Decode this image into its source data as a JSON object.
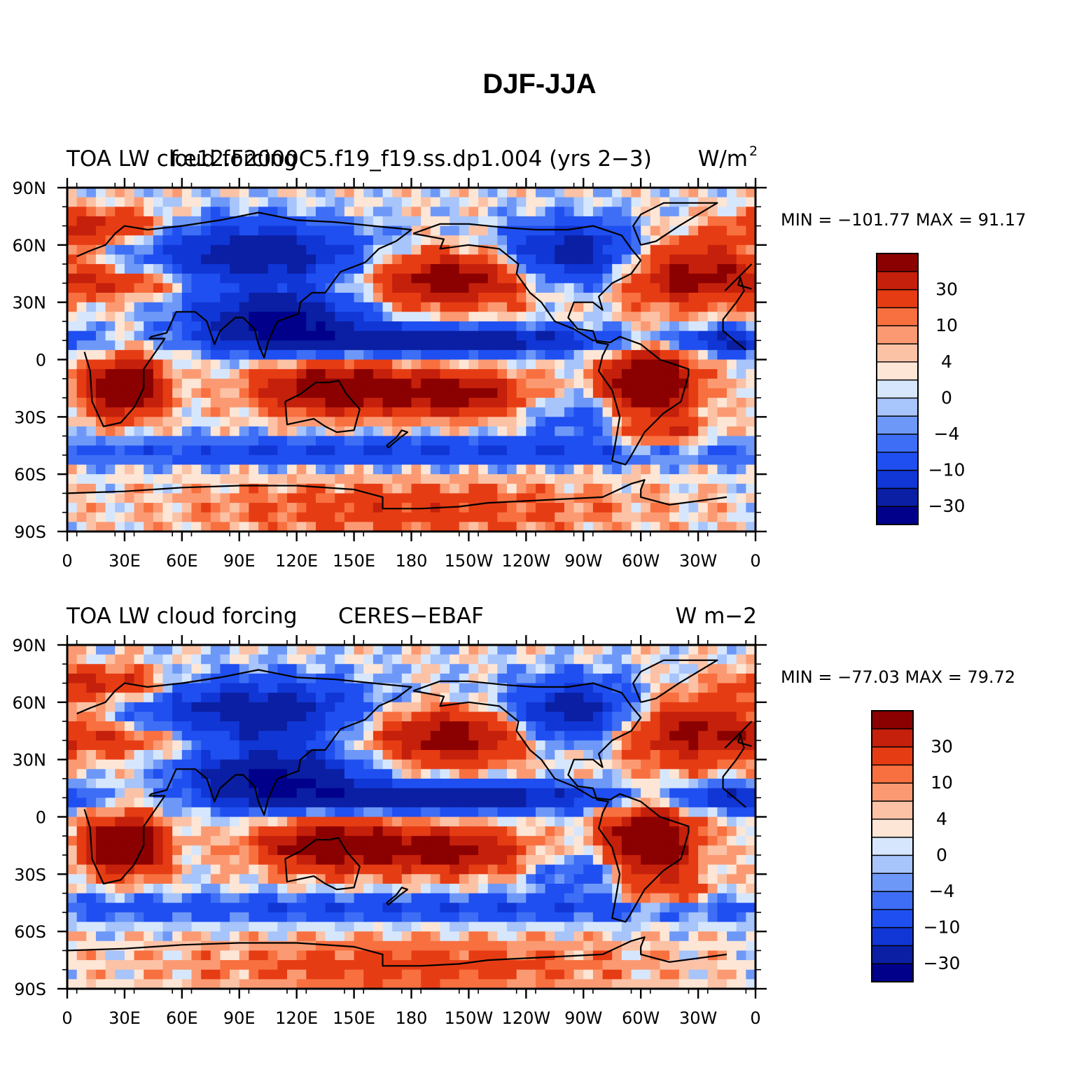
{
  "figure": {
    "title": "DJF-JJA",
    "x_ticks": [
      "0",
      "30E",
      "60E",
      "90E",
      "120E",
      "150E",
      "180",
      "150W",
      "120W",
      "90W",
      "60W",
      "30W",
      "0"
    ],
    "y_ticks": [
      "90N",
      "60N",
      "30N",
      "0",
      "30S",
      "60S",
      "90S"
    ],
    "colorbar_labels": [
      "30",
      "10",
      "4",
      "0",
      "−4",
      "−10",
      "−30"
    ],
    "palette": [
      "#00008b",
      "#0a1fa3",
      "#1136d6",
      "#1f4ff0",
      "#3d6ef5",
      "#6e98f8",
      "#a7c4fb",
      "#d6e7fd",
      "#fde6d6",
      "#fcc2a6",
      "#fb9a72",
      "#f8703f",
      "#e63c14",
      "#c4200b",
      "#8b0000"
    ]
  },
  "panels": [
    {
      "left_title": "TOA LW cloud forcing",
      "center_title": "f.e12.F2000C5.f19_f19.ss.dp1.004 (yrs 2−3)",
      "right_title": "W/m",
      "right_title_sup": "2",
      "min_max": "MIN = −101.77 MAX =  91.17"
    },
    {
      "left_title": "TOA LW cloud forcing",
      "center_title": "CERES−EBAF",
      "right_title": "W m−2",
      "right_title_sup": "",
      "min_max": "MIN = −77.03 MAX =  79.72"
    }
  ],
  "chart_data": [
    {
      "type": "heatmap",
      "title": "f.e12.F2000C5.f19_f19.ss.dp1.004 (yrs 2−3)",
      "variable": "TOA LW cloud forcing",
      "units": "W/m2",
      "x_range": [
        0,
        360
      ],
      "y_range": [
        -90,
        90
      ],
      "min": -101.77,
      "max": 91.17,
      "color_levels": [
        "−30",
        "−10",
        "−4",
        "0",
        "4",
        "10",
        "30"
      ]
    },
    {
      "type": "heatmap",
      "title": "CERES−EBAF",
      "variable": "TOA LW cloud forcing",
      "units": "W m−2",
      "x_range": [
        0,
        360
      ],
      "y_range": [
        -90,
        90
      ],
      "min": -77.03,
      "max": 79.72,
      "color_levels": [
        "−30",
        "−10",
        "−4",
        "0",
        "4",
        "10",
        "30"
      ]
    }
  ]
}
